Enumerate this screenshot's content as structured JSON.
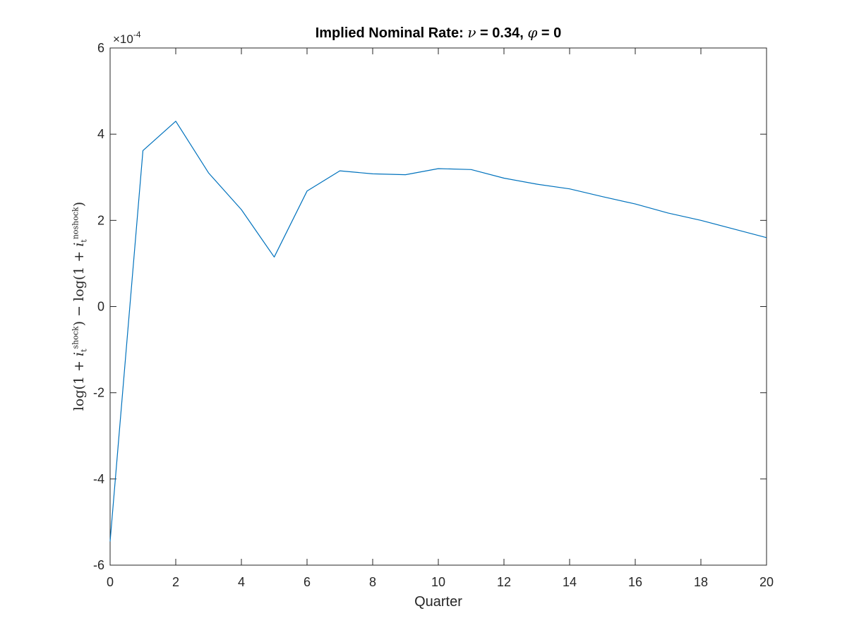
{
  "chart_data": {
    "type": "line",
    "title": "Implied Nominal Rate: ν = 0.34, φ = 0",
    "title_parts": {
      "prefix": "Implied Nominal Rate: ",
      "symbol1": "ν",
      "mid": " = 0.34, ",
      "symbol2": "φ",
      "suffix": " = 0"
    },
    "xlabel": "Quarter",
    "ylabel": "log(1 + i_t^shock) − log(1 + i_t^noshock)",
    "ylabel_parts": {
      "a": "log(1 + ",
      "sym1": "i",
      "sub1": "t",
      "sup1": "shock",
      "b": ") − log(1 + ",
      "sym2": "i",
      "sub2": "t",
      "sup2": "noshock",
      "c": ")"
    },
    "y_exponent": "×10^-4",
    "xlim": [
      0,
      20
    ],
    "ylim": [
      -6,
      6
    ],
    "xticks": [
      0,
      2,
      4,
      6,
      8,
      10,
      12,
      14,
      16,
      18,
      20
    ],
    "yticks": [
      -6,
      -4,
      -2,
      0,
      2,
      4,
      6
    ],
    "grid": false,
    "line_color": "#0072BD",
    "series": [
      {
        "x": [
          0,
          1,
          2,
          3,
          4,
          5,
          6,
          7,
          8,
          9,
          10,
          11,
          12,
          13,
          14,
          15,
          16,
          17,
          18,
          19,
          20
        ],
        "values": [
          -5.45,
          3.62,
          4.3,
          3.1,
          2.25,
          1.15,
          2.68,
          3.15,
          3.08,
          3.06,
          3.2,
          3.18,
          2.98,
          2.84,
          2.73,
          2.55,
          2.38,
          2.17,
          2.0,
          1.8,
          1.6
        ]
      }
    ]
  }
}
